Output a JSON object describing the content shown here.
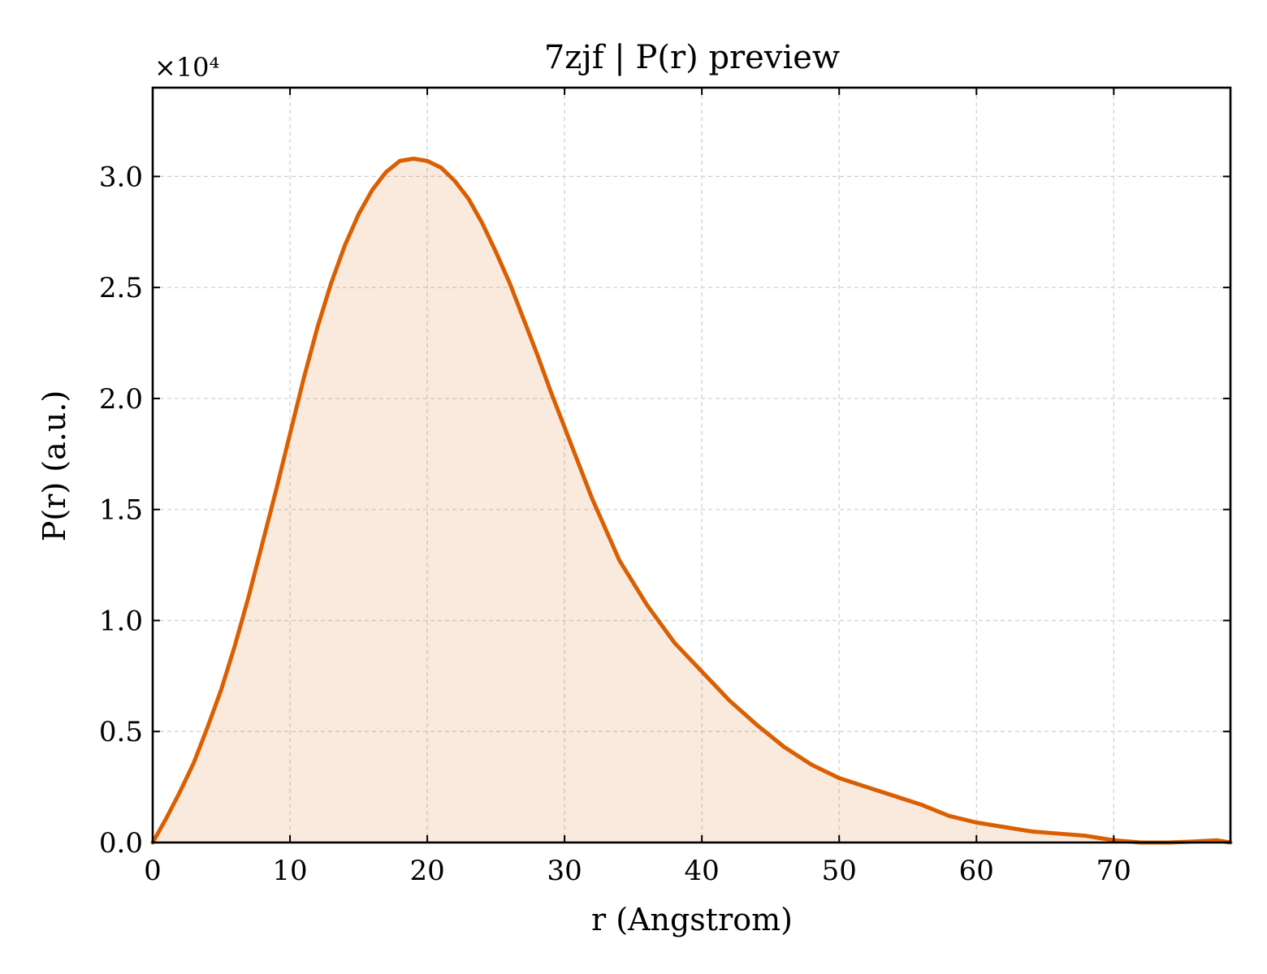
{
  "chart_data": {
    "type": "area",
    "title": "7zjf | P(r) preview",
    "xlabel": "r (Angstrom)",
    "ylabel": "P(r) (a.u.)",
    "y_multiplier": "×10⁴",
    "xlim": [
      0,
      78.5
    ],
    "ylim": [
      0,
      3.4
    ],
    "x_ticks": [
      0,
      10,
      20,
      30,
      40,
      50,
      60,
      70
    ],
    "x_tick_labels": [
      "0",
      "10",
      "20",
      "30",
      "40",
      "50",
      "60",
      "70"
    ],
    "y_ticks": [
      0,
      0.5,
      1.0,
      1.5,
      2.0,
      2.5,
      3.0
    ],
    "y_tick_labels": [
      "0.0",
      "0.5",
      "1.0",
      "1.5",
      "2.0",
      "2.5",
      "3.0"
    ],
    "grid": true,
    "series": [
      {
        "color": "#d95f02",
        "fill_color": "#d95f02",
        "fill_opacity": 0.13,
        "x": [
          0,
          1,
          2,
          3,
          4,
          5,
          6,
          7,
          8,
          9,
          10,
          11,
          12,
          13,
          14,
          15,
          16,
          17,
          18,
          19,
          20,
          21,
          22,
          23,
          24,
          25,
          26,
          27,
          28,
          29,
          30,
          32,
          34,
          36,
          38,
          40,
          42,
          44,
          46,
          48,
          50,
          52,
          54,
          56,
          58,
          60,
          62,
          64,
          66,
          68,
          70,
          72,
          74,
          76,
          77.5,
          78.5
        ],
        "y": [
          0.0,
          0.11,
          0.23,
          0.36,
          0.52,
          0.69,
          0.89,
          1.11,
          1.35,
          1.59,
          1.84,
          2.09,
          2.32,
          2.52,
          2.69,
          2.83,
          2.94,
          3.02,
          3.07,
          3.08,
          3.07,
          3.04,
          2.98,
          2.9,
          2.79,
          2.66,
          2.52,
          2.36,
          2.2,
          2.03,
          1.87,
          1.55,
          1.27,
          1.07,
          0.9,
          0.77,
          0.64,
          0.53,
          0.43,
          0.35,
          0.29,
          0.25,
          0.21,
          0.17,
          0.12,
          0.09,
          0.07,
          0.05,
          0.04,
          0.03,
          0.01,
          0.0,
          0.0,
          0.005,
          0.01,
          0.0
        ]
      }
    ]
  }
}
